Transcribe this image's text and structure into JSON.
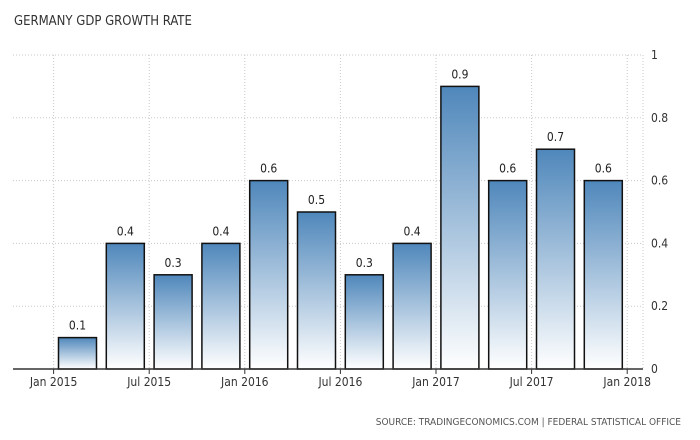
{
  "chart_data": {
    "type": "bar",
    "title": "GERMANY GDP GROWTH RATE",
    "source": "SOURCE: TRADINGECONOMICS.COM | FEDERAL STATISTICAL OFFICE",
    "categories": [
      "Q1 2015",
      "Q2 2015",
      "Q3 2015",
      "Q4 2015",
      "Q1 2016",
      "Q2 2016",
      "Q3 2016",
      "Q4 2016",
      "Q1 2017",
      "Q2 2017",
      "Q3 2017",
      "Q4 2017"
    ],
    "values": [
      0.1,
      0.4,
      0.3,
      0.4,
      0.6,
      0.5,
      0.3,
      0.4,
      0.9,
      0.6,
      0.7,
      0.6
    ],
    "data_labels": [
      "0.1",
      "0.4",
      "0.3",
      "0.4",
      "0.6",
      "0.5",
      "0.3",
      "0.4",
      "0.9",
      "0.6",
      "0.7",
      "0.6"
    ],
    "x_tick_labels": [
      "Jan 2015",
      "Jul 2015",
      "Jan 2016",
      "Jul 2016",
      "Jan 2017",
      "Jul 2017",
      "Jan 2018"
    ],
    "y_ticks": [
      0,
      0.2,
      0.4,
      0.6,
      0.8,
      1
    ],
    "y_tick_labels": [
      "0",
      "0.2",
      "0.4",
      "0.6",
      "0.8",
      "1"
    ],
    "ylim": [
      0,
      1
    ],
    "y_axis_side": "right",
    "grid": true,
    "legend": "none",
    "colors": {
      "bar_top": "#4f87bb",
      "bar_bottom": "#ffffff",
      "bar_stroke": "#111111",
      "grid": "#c8c8c8",
      "axis": "#333333"
    }
  }
}
